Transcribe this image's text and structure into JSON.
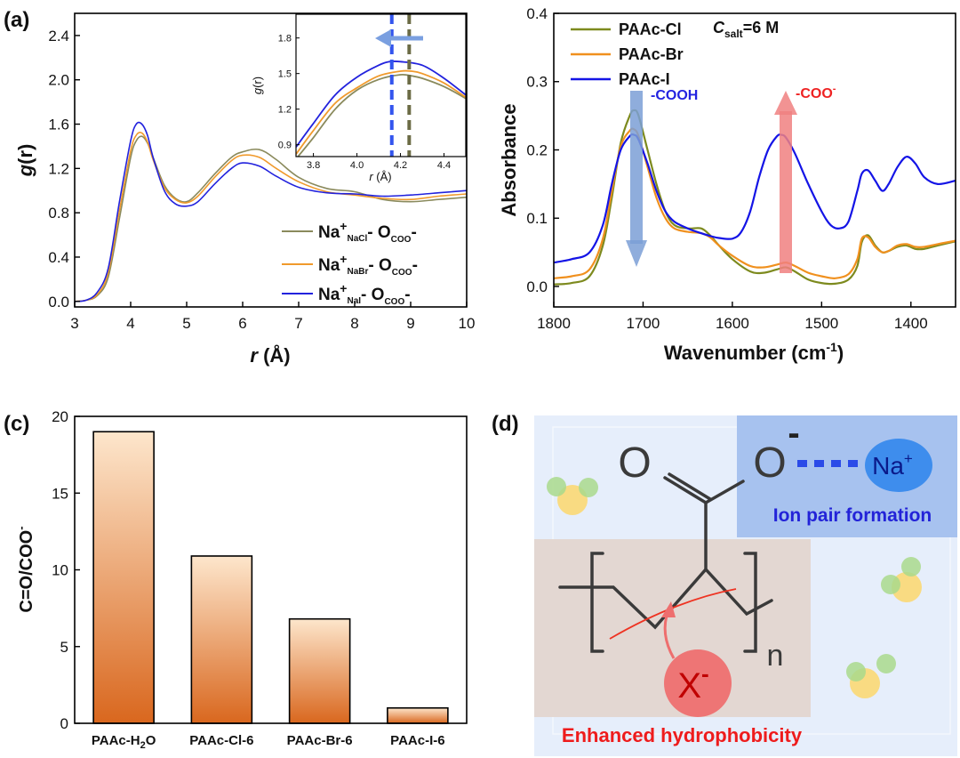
{
  "panels": {
    "a": {
      "label": "(a)"
    },
    "c": {
      "label": "(c)"
    },
    "d": {
      "label": "(d)"
    }
  },
  "chart_data": [
    {
      "id": "a",
      "type": "line",
      "ylabel_italic": "g",
      "ylabel_rest": "(r)",
      "xlabel_italic": "r",
      "xlabel_rest": " (Å)",
      "xlim": [
        3,
        10
      ],
      "ylim": [
        -0.05,
        2.6
      ],
      "xticks": [
        "3",
        "4",
        "5",
        "6",
        "7",
        "8",
        "9",
        "10"
      ],
      "yticks": [
        "0.0",
        "0.4",
        "0.8",
        "1.2",
        "1.6",
        "2.0",
        "2.4"
      ],
      "legend_position": "bottom-right",
      "series": [
        {
          "legend_main": "Na",
          "legend_sup": "+",
          "legend_sub": "NaCl",
          "legend_mid": "- O",
          "legend_sub2": "COO",
          "legend_end": "-",
          "color": "#8a8a5c",
          "x": [
            3.0,
            3.2,
            3.4,
            3.6,
            3.8,
            4.0,
            4.1,
            4.2,
            4.3,
            4.4,
            4.6,
            4.8,
            5.0,
            5.2,
            5.5,
            5.8,
            6.0,
            6.3,
            6.6,
            7.0,
            7.5,
            8.0,
            8.5,
            9.0,
            9.5,
            10.0
          ],
          "y": [
            0.0,
            0.01,
            0.05,
            0.22,
            0.75,
            1.3,
            1.45,
            1.49,
            1.43,
            1.3,
            1.05,
            0.93,
            0.9,
            0.98,
            1.15,
            1.3,
            1.35,
            1.37,
            1.28,
            1.12,
            1.02,
            0.99,
            0.92,
            0.9,
            0.92,
            0.94
          ]
        },
        {
          "legend_main": "Na",
          "legend_sup": "+",
          "legend_sub": "NaBr",
          "legend_mid": "- O",
          "legend_sub2": "COO",
          "legend_end": "-",
          "color": "#f09a2c",
          "x": [
            3.0,
            3.2,
            3.4,
            3.6,
            3.8,
            4.0,
            4.1,
            4.2,
            4.3,
            4.4,
            4.6,
            4.8,
            5.0,
            5.2,
            5.5,
            5.8,
            6.0,
            6.3,
            6.6,
            7.0,
            7.5,
            8.0,
            8.5,
            9.0,
            9.5,
            10.0
          ],
          "y": [
            0.0,
            0.01,
            0.06,
            0.26,
            0.82,
            1.36,
            1.5,
            1.52,
            1.44,
            1.28,
            1.03,
            0.92,
            0.89,
            0.95,
            1.12,
            1.27,
            1.32,
            1.3,
            1.2,
            1.08,
            0.99,
            0.96,
            0.93,
            0.92,
            0.95,
            0.97
          ]
        },
        {
          "legend_main": "Na",
          "legend_sup": "+",
          "legend_sub": "NaI",
          "legend_mid": "- O",
          "legend_sub2": "COO",
          "legend_end": "-",
          "color": "#2222dd",
          "x": [
            3.0,
            3.2,
            3.4,
            3.6,
            3.8,
            4.0,
            4.1,
            4.2,
            4.3,
            4.4,
            4.6,
            4.8,
            5.0,
            5.2,
            5.5,
            5.8,
            6.0,
            6.3,
            6.6,
            7.0,
            7.5,
            8.0,
            8.5,
            9.0,
            9.5,
            10.0
          ],
          "y": [
            0.0,
            0.01,
            0.08,
            0.3,
            0.9,
            1.45,
            1.6,
            1.6,
            1.5,
            1.3,
            1.0,
            0.88,
            0.86,
            0.9,
            1.06,
            1.2,
            1.25,
            1.22,
            1.13,
            1.03,
            0.98,
            0.97,
            0.95,
            0.96,
            0.98,
            1.0
          ]
        }
      ],
      "inset": {
        "xlim": [
          3.72,
          4.5
        ],
        "ylim": [
          0.8,
          2.0
        ],
        "xticks": [
          "3.8",
          "4.0",
          "4.2",
          "4.4"
        ],
        "yticks": [
          "0.9",
          "1.2",
          "1.5",
          "1.8"
        ],
        "xlabel_italic": "r",
        "xlabel_rest": " (Å)",
        "ylabel_italic": "g",
        "ylabel_rest": "(r)",
        "series": [
          {
            "color": "#8a8a5c",
            "x": [
              3.72,
              3.8,
              3.9,
              4.0,
              4.1,
              4.2,
              4.25,
              4.3,
              4.4,
              4.5
            ],
            "y": [
              0.78,
              0.96,
              1.2,
              1.36,
              1.45,
              1.49,
              1.48,
              1.46,
              1.39,
              1.29
            ]
          },
          {
            "color": "#f09a2c",
            "x": [
              3.72,
              3.8,
              3.9,
              4.0,
              4.1,
              4.2,
              4.25,
              4.3,
              4.4,
              4.5
            ],
            "y": [
              0.82,
              1.02,
              1.25,
              1.38,
              1.48,
              1.52,
              1.52,
              1.5,
              1.42,
              1.3
            ]
          },
          {
            "color": "#2222dd",
            "x": [
              3.72,
              3.8,
              3.9,
              4.0,
              4.1,
              4.15,
              4.2,
              4.3,
              4.4,
              4.5
            ],
            "y": [
              0.88,
              1.08,
              1.32,
              1.47,
              1.57,
              1.6,
              1.6,
              1.57,
              1.46,
              1.32
            ]
          }
        ],
        "markers": [
          {
            "x": 4.16,
            "color": "#3355ee"
          },
          {
            "x": 4.24,
            "color": "#6b6b45"
          }
        ],
        "arrow_color": "#7a9fe0"
      }
    },
    {
      "id": "b",
      "type": "line",
      "ylabel": "Absorbance",
      "xlabel_main": "Wavenumber (cm",
      "xlabel_sup": "-1",
      "xlabel_end": ")",
      "xlim": [
        1800,
        1350
      ],
      "ylim": [
        -0.03,
        0.4
      ],
      "xticks": [
        1800,
        1700,
        1600,
        1500,
        1400
      ],
      "yticks": [
        "0.0",
        "0.1",
        "0.2",
        "0.3",
        "0.4"
      ],
      "annotation_c": "C",
      "annotation_sub": "salt",
      "annotation_rest": "=6  M",
      "cooh_label": "-COOH",
      "coo_label": "-COO",
      "coo_sup": "-",
      "series": [
        {
          "name": "PAAc-Cl",
          "color": "#7d8a1e",
          "x": [
            1800,
            1780,
            1760,
            1745,
            1735,
            1725,
            1715,
            1710,
            1705,
            1695,
            1685,
            1675,
            1665,
            1650,
            1635,
            1625,
            1615,
            1600,
            1580,
            1565,
            1550,
            1540,
            1530,
            1515,
            1500,
            1485,
            1470,
            1460,
            1455,
            1448,
            1440,
            1432,
            1425,
            1415,
            1405,
            1395,
            1385,
            1370,
            1350
          ],
          "y": [
            0.003,
            0.005,
            0.015,
            0.06,
            0.13,
            0.21,
            0.25,
            0.258,
            0.25,
            0.2,
            0.15,
            0.11,
            0.09,
            0.085,
            0.085,
            0.075,
            0.06,
            0.04,
            0.022,
            0.02,
            0.025,
            0.028,
            0.022,
            0.01,
            0.005,
            0.004,
            0.01,
            0.03,
            0.065,
            0.075,
            0.06,
            0.05,
            0.052,
            0.058,
            0.06,
            0.055,
            0.055,
            0.06,
            0.066
          ]
        },
        {
          "name": "PAAc-Br",
          "color": "#f0901e",
          "x": [
            1800,
            1780,
            1760,
            1745,
            1735,
            1725,
            1715,
            1710,
            1705,
            1695,
            1685,
            1675,
            1665,
            1650,
            1635,
            1625,
            1615,
            1600,
            1580,
            1565,
            1550,
            1540,
            1530,
            1515,
            1500,
            1485,
            1470,
            1460,
            1455,
            1448,
            1440,
            1432,
            1425,
            1415,
            1405,
            1395,
            1385,
            1370,
            1350
          ],
          "y": [
            0.012,
            0.015,
            0.025,
            0.07,
            0.14,
            0.205,
            0.228,
            0.23,
            0.22,
            0.175,
            0.13,
            0.1,
            0.085,
            0.08,
            0.078,
            0.072,
            0.06,
            0.045,
            0.03,
            0.028,
            0.032,
            0.035,
            0.03,
            0.02,
            0.015,
            0.012,
            0.018,
            0.04,
            0.07,
            0.072,
            0.058,
            0.05,
            0.052,
            0.06,
            0.062,
            0.058,
            0.058,
            0.062,
            0.067
          ]
        },
        {
          "name": "PAAc-I",
          "color": "#1414e6",
          "x": [
            1800,
            1780,
            1760,
            1745,
            1735,
            1725,
            1715,
            1710,
            1705,
            1695,
            1685,
            1675,
            1665,
            1650,
            1635,
            1625,
            1615,
            1600,
            1590,
            1580,
            1570,
            1560,
            1550,
            1545,
            1540,
            1530,
            1515,
            1500,
            1490,
            1480,
            1470,
            1460,
            1455,
            1448,
            1440,
            1432,
            1425,
            1415,
            1405,
            1395,
            1385,
            1370,
            1350
          ],
          "y": [
            0.035,
            0.04,
            0.05,
            0.09,
            0.15,
            0.2,
            0.22,
            0.222,
            0.215,
            0.18,
            0.14,
            0.11,
            0.095,
            0.085,
            0.078,
            0.074,
            0.071,
            0.07,
            0.08,
            0.11,
            0.16,
            0.2,
            0.22,
            0.222,
            0.218,
            0.195,
            0.15,
            0.11,
            0.09,
            0.085,
            0.095,
            0.14,
            0.165,
            0.17,
            0.155,
            0.14,
            0.15,
            0.175,
            0.19,
            0.18,
            0.16,
            0.15,
            0.155
          ]
        }
      ]
    },
    {
      "id": "c",
      "type": "bar",
      "ylabel": "C=O/COO",
      "ylabel_sup": "-",
      "ylim": [
        0,
        20
      ],
      "yticks": [
        "0",
        "5",
        "10",
        "15",
        "20"
      ],
      "categories": [
        {
          "main": "PAAc-H",
          "sub": "2",
          "end": "O"
        },
        {
          "main": "PAAc-Cl-6",
          "sub": "",
          "end": ""
        },
        {
          "main": "PAAc-Br-6",
          "sub": "",
          "end": ""
        },
        {
          "main": "PAAc-I-6",
          "sub": "",
          "end": ""
        }
      ],
      "values": [
        19.0,
        10.9,
        6.8,
        1.0
      ],
      "bar_color_top": "#fde6cc",
      "bar_color_bottom": "#d9671e"
    }
  ],
  "diagram": {
    "o_left": "O",
    "o_right": "O",
    "o_minus": "-",
    "na": "Na",
    "na_sup": "+",
    "ion_pair": "Ion pair  formation",
    "x": "X",
    "x_sup": "-",
    "n": "n",
    "enhanced": "Enhanced hydrophobicity"
  }
}
